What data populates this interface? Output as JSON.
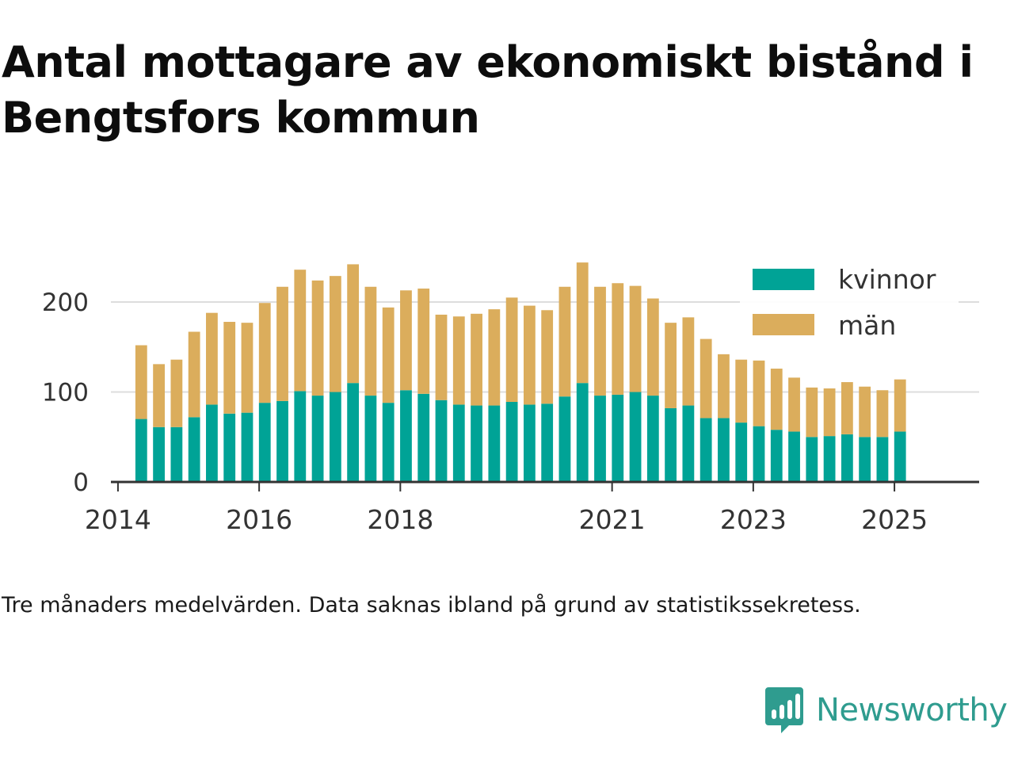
{
  "title": "Antal mottagare av ekonomiskt bistånd i Bengtsfors kommun",
  "footnote": "Tre månaders medelvärden. Data saknas ibland på grund av statistikssekretess.",
  "brand": {
    "name": "Newsworthy",
    "icon": "newsworthy-logo-icon"
  },
  "colors": {
    "kvinnor": "#00a396",
    "man": "#dbad5c",
    "grid": "#dddddd",
    "axis": "#333333",
    "text": "#333333"
  },
  "chart_data": {
    "type": "bar",
    "stacked": true,
    "grid": true,
    "legend_position": "top-right",
    "ylim": [
      0,
      245
    ],
    "yticks": [
      0,
      100,
      200
    ],
    "xlim": [
      2013.9,
      2026.2
    ],
    "xticks": [
      {
        "value": 2014,
        "label": "2014"
      },
      {
        "value": 2016,
        "label": "2016"
      },
      {
        "value": 2018,
        "label": "2018"
      },
      {
        "value": 2021,
        "label": "2021"
      },
      {
        "value": 2023,
        "label": "2023"
      },
      {
        "value": 2025,
        "label": "2025"
      }
    ],
    "x": [
      2014.33,
      2014.58,
      2014.83,
      2015.08,
      2015.33,
      2015.58,
      2015.83,
      2016.08,
      2016.33,
      2016.58,
      2016.83,
      2017.08,
      2017.33,
      2017.58,
      2017.83,
      2018.08,
      2018.33,
      2018.58,
      2018.83,
      2019.08,
      2019.33,
      2019.58,
      2019.83,
      2020.08,
      2020.33,
      2020.58,
      2020.83,
      2021.08,
      2021.33,
      2021.58,
      2021.83,
      2022.08,
      2022.33,
      2022.58,
      2022.83,
      2023.08,
      2023.33,
      2023.58,
      2023.83,
      2024.08,
      2024.33,
      2024.58,
      2024.83,
      2025.08
    ],
    "series": [
      {
        "name": "kvinnor",
        "values": [
          70,
          61,
          61,
          72,
          86,
          76,
          77,
          88,
          90,
          101,
          96,
          100,
          110,
          96,
          88,
          102,
          98,
          91,
          86,
          85,
          85,
          89,
          86,
          87,
          95,
          110,
          96,
          97,
          100,
          96,
          82,
          85,
          71,
          71,
          66,
          62,
          58,
          56,
          50,
          51,
          53,
          50,
          50,
          56
        ]
      },
      {
        "name": "män",
        "values": [
          82,
          70,
          75,
          95,
          102,
          102,
          100,
          111,
          127,
          135,
          128,
          129,
          132,
          121,
          106,
          111,
          117,
          95,
          98,
          102,
          107,
          116,
          110,
          104,
          122,
          134,
          121,
          124,
          118,
          108,
          95,
          98,
          88,
          71,
          70,
          73,
          68,
          60,
          55,
          53,
          58,
          56,
          52,
          58
        ]
      }
    ]
  }
}
